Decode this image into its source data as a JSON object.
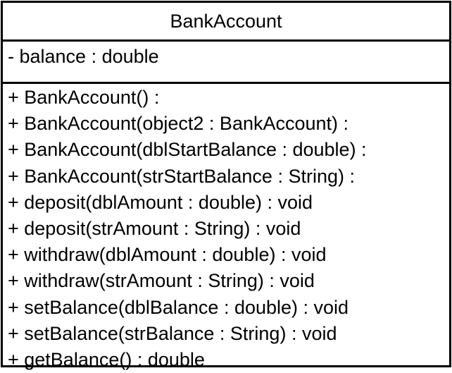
{
  "class_diagram": {
    "class_name": "BankAccount",
    "attributes": [
      "- balance : double"
    ],
    "operations": [
      "+ BankAccount() :",
      "+ BankAccount(object2 : BankAccount) :",
      "+ BankAccount(dblStartBalance : double) :",
      "+ BankAccount(strStartBalance : String) :",
      "+ deposit(dblAmount : double) : void",
      "+ deposit(strAmount : String) : void",
      "+ withdraw(dblAmount : double) : void",
      "+ withdraw(strAmount : String) : void",
      "+ setBalance(dblBalance : double) : void",
      "+ setBalance(strBalance : String) : void",
      "+ getBalance() : double"
    ]
  }
}
